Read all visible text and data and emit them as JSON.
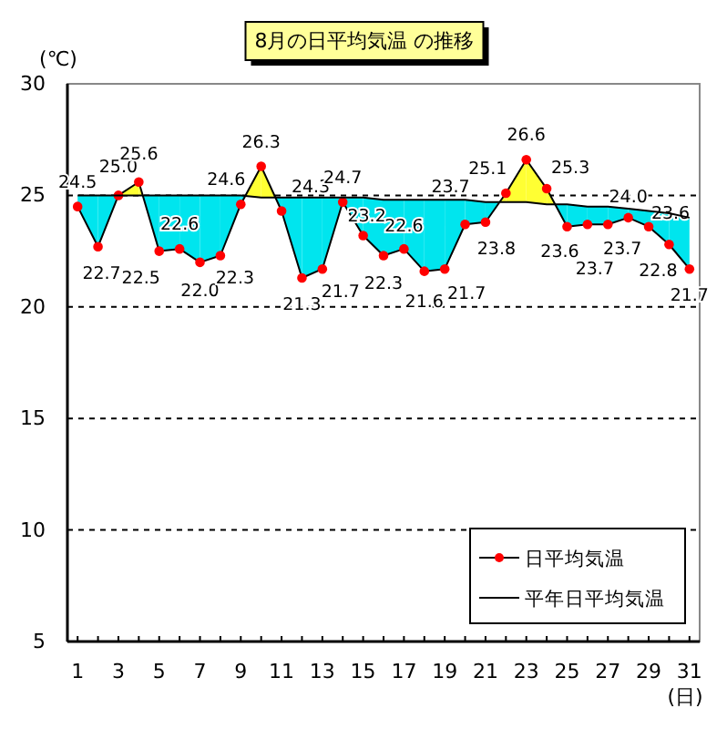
{
  "chart_data": {
    "type": "line",
    "title": "8月の日平均気温 の推移",
    "ylabel": "(℃)",
    "xlabel": "(日)",
    "x": [
      1,
      2,
      3,
      4,
      5,
      6,
      7,
      8,
      9,
      10,
      11,
      12,
      13,
      14,
      15,
      16,
      17,
      18,
      19,
      20,
      21,
      22,
      23,
      24,
      25,
      26,
      27,
      28,
      29,
      30,
      31
    ],
    "series": [
      {
        "name": "日平均気温",
        "color": "#ff0000",
        "marker": "circle",
        "values": [
          24.5,
          22.7,
          25.0,
          25.6,
          22.5,
          22.6,
          22.0,
          22.3,
          24.6,
          26.3,
          24.3,
          21.3,
          21.7,
          24.7,
          23.2,
          22.3,
          22.6,
          21.6,
          21.7,
          23.7,
          23.8,
          25.1,
          26.6,
          25.3,
          23.6,
          23.7,
          23.7,
          24.0,
          23.6,
          22.8,
          21.7
        ],
        "value_labels": [
          "24.5",
          "22.7",
          "25.0",
          "25.6",
          "22.5",
          "22.6",
          "22.0",
          "22.3",
          "24.6",
          "26.3",
          "24.3",
          "21.3",
          "21.7",
          "24.7",
          "23.2",
          "22.3",
          "22.6",
          "21.6",
          "21.7",
          "23.7",
          "23.8",
          "25.1",
          "26.6",
          "25.3",
          "23.6",
          "23.7",
          "23.7",
          "24.0",
          "23.6",
          "22.8",
          "21.7"
        ]
      },
      {
        "name": "平年日平均気温",
        "color": "#000000",
        "marker": "none",
        "values": [
          25.0,
          25.0,
          25.0,
          25.0,
          25.0,
          25.0,
          25.0,
          25.0,
          25.0,
          24.9,
          24.9,
          24.9,
          24.9,
          24.9,
          24.9,
          24.8,
          24.8,
          24.8,
          24.8,
          24.8,
          24.7,
          24.7,
          24.7,
          24.6,
          24.6,
          24.5,
          24.5,
          24.4,
          24.3,
          24.2,
          24.0
        ]
      }
    ],
    "xlim": [
      0.5,
      31.5
    ],
    "xticks": [
      1,
      3,
      5,
      7,
      9,
      11,
      13,
      15,
      17,
      19,
      21,
      23,
      25,
      27,
      29,
      31
    ],
    "ylim": [
      5,
      30
    ],
    "yticks": [
      5,
      10,
      15,
      20,
      25,
      30
    ],
    "grid": "y",
    "legend": "bottom right"
  }
}
